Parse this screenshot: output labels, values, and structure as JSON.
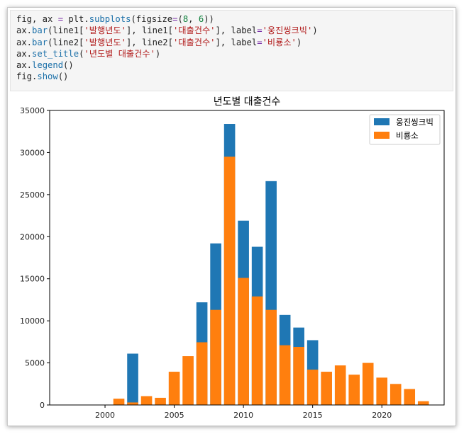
{
  "code": {
    "lines": [
      [
        {
          "t": "fig, ax ",
          "c": ""
        },
        {
          "t": "=",
          "c": "op"
        },
        {
          "t": " plt.",
          "c": ""
        },
        {
          "t": "subplots",
          "c": "fn"
        },
        {
          "t": "(figsize",
          "c": ""
        },
        {
          "t": "=",
          "c": "op"
        },
        {
          "t": "(",
          "c": ""
        },
        {
          "t": "8",
          "c": "num"
        },
        {
          "t": ", ",
          "c": ""
        },
        {
          "t": "6",
          "c": "num"
        },
        {
          "t": "))",
          "c": ""
        }
      ],
      [
        {
          "t": "ax.",
          "c": ""
        },
        {
          "t": "bar",
          "c": "fn"
        },
        {
          "t": "(line1[",
          "c": ""
        },
        {
          "t": "'발행년도'",
          "c": "str"
        },
        {
          "t": "], line1[",
          "c": ""
        },
        {
          "t": "'대출건수'",
          "c": "str"
        },
        {
          "t": "], label",
          "c": ""
        },
        {
          "t": "=",
          "c": "op"
        },
        {
          "t": "'웅진씽크빅'",
          "c": "str"
        },
        {
          "t": ")",
          "c": ""
        }
      ],
      [
        {
          "t": "ax.",
          "c": ""
        },
        {
          "t": "bar",
          "c": "fn"
        },
        {
          "t": "(line2[",
          "c": ""
        },
        {
          "t": "'발행년도'",
          "c": "str"
        },
        {
          "t": "], line2[",
          "c": ""
        },
        {
          "t": "'대출건수'",
          "c": "str"
        },
        {
          "t": "], label",
          "c": ""
        },
        {
          "t": "=",
          "c": "op"
        },
        {
          "t": "'비룡소'",
          "c": "str"
        },
        {
          "t": ")",
          "c": ""
        }
      ],
      [
        {
          "t": "ax.",
          "c": ""
        },
        {
          "t": "set_title",
          "c": "fn"
        },
        {
          "t": "(",
          "c": ""
        },
        {
          "t": "'년도별 대출건수'",
          "c": "str"
        },
        {
          "t": ")",
          "c": ""
        }
      ],
      [
        {
          "t": "ax.",
          "c": ""
        },
        {
          "t": "legend",
          "c": "fn"
        },
        {
          "t": "()",
          "c": ""
        }
      ],
      [
        {
          "t": "fig.",
          "c": ""
        },
        {
          "t": "show",
          "c": "fn"
        },
        {
          "t": "()",
          "c": ""
        }
      ]
    ]
  },
  "chart_data": {
    "type": "bar",
    "title": "년도별 대출건수",
    "xlabel": "",
    "ylabel": "",
    "xlim": [
      1996,
      2024.5
    ],
    "ylim": [
      0,
      35000
    ],
    "xticks": [
      2000,
      2005,
      2010,
      2015,
      2020
    ],
    "yticks": [
      0,
      5000,
      10000,
      15000,
      20000,
      25000,
      30000,
      35000
    ],
    "grid": false,
    "legend_position": "top-right",
    "series": [
      {
        "name": "웅진씽크빅",
        "color": "#1f77b4",
        "points": [
          {
            "x": 2002,
            "y": 6100
          },
          {
            "x": 2007,
            "y": 12200
          },
          {
            "x": 2008,
            "y": 19200
          },
          {
            "x": 2009,
            "y": 33400
          },
          {
            "x": 2010,
            "y": 21900
          },
          {
            "x": 2011,
            "y": 18800
          },
          {
            "x": 2012,
            "y": 26600
          },
          {
            "x": 2013,
            "y": 10700
          },
          {
            "x": 2014,
            "y": 9200
          },
          {
            "x": 2015,
            "y": 7700
          }
        ]
      },
      {
        "name": "비룡소",
        "color": "#ff7f0e",
        "points": [
          {
            "x": 2001,
            "y": 750
          },
          {
            "x": 2002,
            "y": 300
          },
          {
            "x": 2003,
            "y": 1050
          },
          {
            "x": 2004,
            "y": 850
          },
          {
            "x": 2005,
            "y": 3950
          },
          {
            "x": 2006,
            "y": 5800
          },
          {
            "x": 2007,
            "y": 7450
          },
          {
            "x": 2008,
            "y": 11300
          },
          {
            "x": 2009,
            "y": 29500
          },
          {
            "x": 2010,
            "y": 15100
          },
          {
            "x": 2011,
            "y": 12900
          },
          {
            "x": 2012,
            "y": 11300
          },
          {
            "x": 2013,
            "y": 7100
          },
          {
            "x": 2014,
            "y": 6900
          },
          {
            "x": 2015,
            "y": 4200
          },
          {
            "x": 2016,
            "y": 3950
          },
          {
            "x": 2017,
            "y": 4700
          },
          {
            "x": 2018,
            "y": 3600
          },
          {
            "x": 2019,
            "y": 5000
          },
          {
            "x": 2020,
            "y": 3250
          },
          {
            "x": 2021,
            "y": 2500
          },
          {
            "x": 2022,
            "y": 1900
          },
          {
            "x": 2023,
            "y": 450
          }
        ]
      }
    ]
  }
}
